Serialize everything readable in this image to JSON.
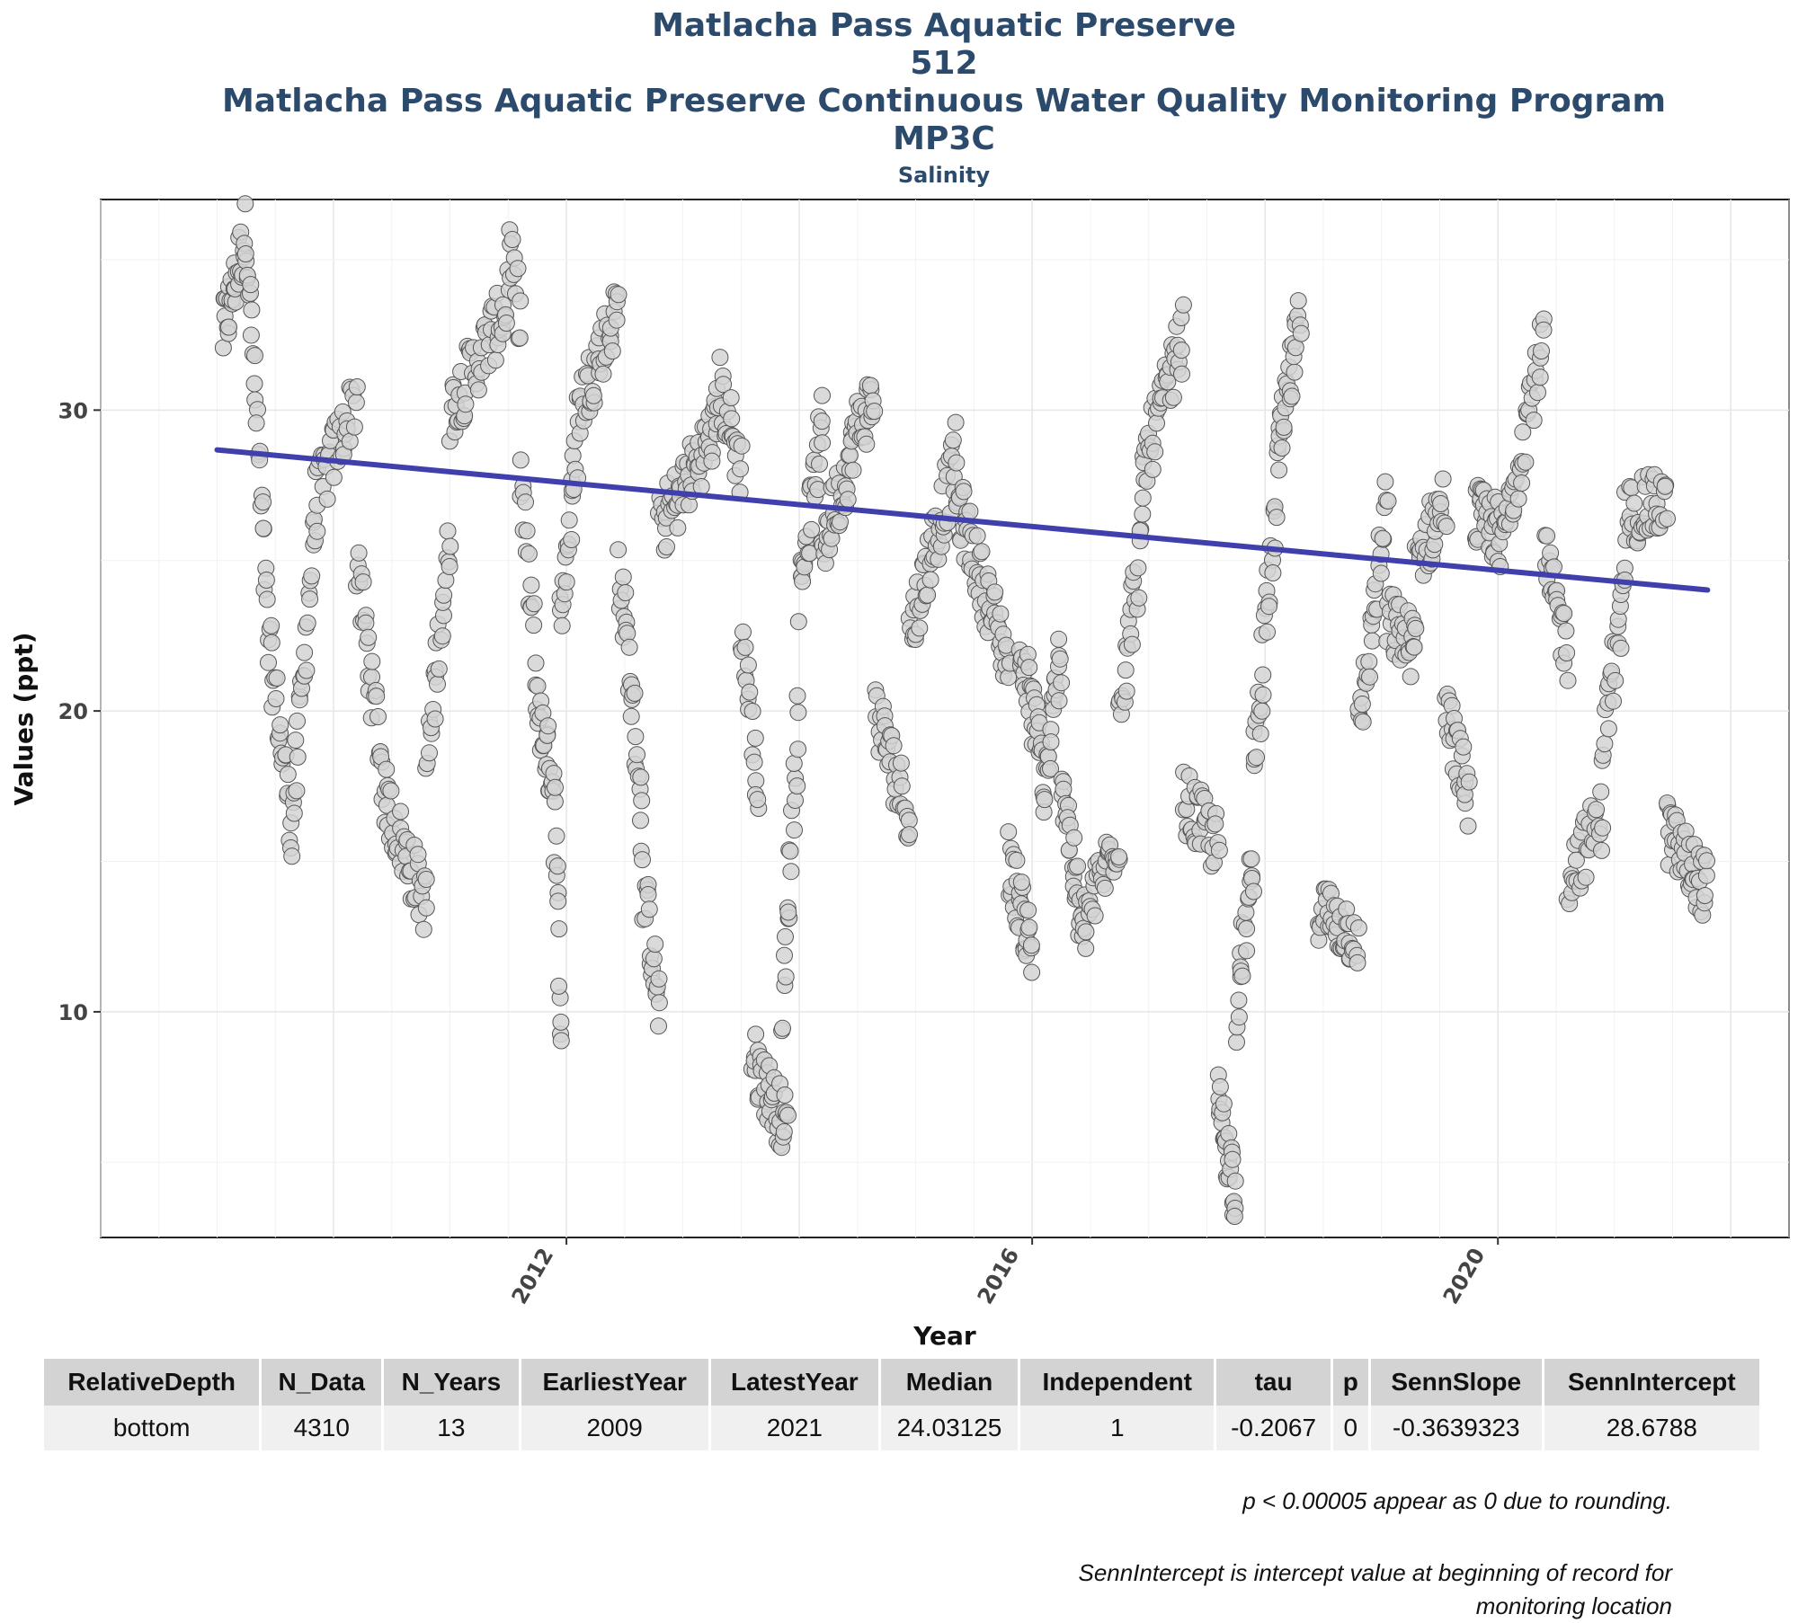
{
  "header": {
    "title": "Matlacha Pass Aquatic Preserve",
    "program_id": "512",
    "program": "Matlacha Pass Aquatic Preserve Continuous Water Quality Monitoring Program",
    "station": "MP3C",
    "parameter": "Salinity"
  },
  "chart_data": {
    "type": "scatter",
    "title": "Matlacha Pass Aquatic Preserve",
    "subtitle": "Salinity",
    "xlabel": "Year",
    "ylabel": "Values (ppt)",
    "xlim": [
      2008.0,
      2022.5
    ],
    "ylim": [
      2.5,
      37.0
    ],
    "x_ticks": [
      2012,
      2016,
      2020
    ],
    "y_ticks": [
      10,
      20,
      30
    ],
    "grid": true,
    "colors": {
      "points_fill": "#d4d4d4",
      "points_stroke": "#555555",
      "trend": "#3f3fae",
      "title": "#2c4a6b"
    },
    "trend": {
      "x": [
        2009.0,
        2021.8
      ],
      "y": [
        28.6788,
        24.02
      ]
    },
    "segments": [
      {
        "x0": 2009.05,
        "x1": 2009.25,
        "y0": 32.5,
        "y1": 36.0,
        "n": 30
      },
      {
        "x0": 2009.25,
        "x1": 2009.45,
        "y0": 36.0,
        "y1": 22.0,
        "n": 28
      },
      {
        "x0": 2009.45,
        "x1": 2009.65,
        "y0": 22.0,
        "y1": 16.0,
        "n": 24
      },
      {
        "x0": 2009.65,
        "x1": 2009.85,
        "y0": 16.5,
        "y1": 27.0,
        "n": 26
      },
      {
        "x0": 2009.85,
        "x1": 2010.2,
        "y0": 27.0,
        "y1": 30.5,
        "n": 34
      },
      {
        "x0": 2010.2,
        "x1": 2010.45,
        "y0": 25.0,
        "y1": 17.0,
        "n": 30
      },
      {
        "x0": 2010.45,
        "x1": 2010.8,
        "y0": 17.0,
        "y1": 13.5,
        "n": 40
      },
      {
        "x0": 2010.8,
        "x1": 2011.0,
        "y0": 18.0,
        "y1": 26.0,
        "n": 26
      },
      {
        "x0": 2011.0,
        "x1": 2011.5,
        "y0": 30.0,
        "y1": 33.5,
        "n": 50
      },
      {
        "x0": 2011.5,
        "x1": 2011.6,
        "y0": 35.5,
        "y1": 33.0,
        "n": 12
      },
      {
        "x0": 2011.6,
        "x1": 2011.75,
        "y0": 28.0,
        "y1": 21.0,
        "n": 18
      },
      {
        "x0": 2011.75,
        "x1": 2011.9,
        "y0": 20.0,
        "y1": 17.5,
        "n": 24
      },
      {
        "x0": 2011.9,
        "x1": 2011.96,
        "y0": 16.0,
        "y1": 9.0,
        "n": 12
      },
      {
        "x0": 2011.95,
        "x1": 2012.1,
        "y0": 23.0,
        "y1": 29.0,
        "n": 22
      },
      {
        "x0": 2012.1,
        "x1": 2012.45,
        "y0": 30.0,
        "y1": 33.5,
        "n": 40
      },
      {
        "x0": 2012.45,
        "x1": 2012.65,
        "y0": 25.0,
        "y1": 17.0,
        "n": 28
      },
      {
        "x0": 2012.65,
        "x1": 2012.8,
        "y0": 14.5,
        "y1": 10.0,
        "n": 22
      },
      {
        "x0": 2012.8,
        "x1": 2013.3,
        "y0": 26.0,
        "y1": 29.5,
        "n": 60
      },
      {
        "x0": 2013.3,
        "x1": 2013.5,
        "y0": 31.0,
        "y1": 28.0,
        "n": 24
      },
      {
        "x0": 2013.5,
        "x1": 2013.65,
        "y0": 23.0,
        "y1": 17.0,
        "n": 18
      },
      {
        "x0": 2013.6,
        "x1": 2013.9,
        "y0": 8.5,
        "y1": 6.0,
        "n": 40
      },
      {
        "x0": 2013.85,
        "x1": 2014.0,
        "y0": 10.0,
        "y1": 20.0,
        "n": 22
      },
      {
        "x0": 2014.0,
        "x1": 2014.2,
        "y0": 24.0,
        "y1": 29.5,
        "n": 28
      },
      {
        "x0": 2014.2,
        "x1": 2014.45,
        "y0": 25.5,
        "y1": 28.5,
        "n": 34
      },
      {
        "x0": 2014.45,
        "x1": 2014.65,
        "y0": 29.0,
        "y1": 30.5,
        "n": 24
      },
      {
        "x0": 2014.65,
        "x1": 2014.95,
        "y0": 20.0,
        "y1": 16.5,
        "n": 34
      },
      {
        "x0": 2014.95,
        "x1": 2015.35,
        "y0": 22.5,
        "y1": 28.5,
        "n": 50
      },
      {
        "x0": 2015.35,
        "x1": 2015.8,
        "y0": 27.0,
        "y1": 21.5,
        "n": 56
      },
      {
        "x0": 2015.8,
        "x1": 2016.0,
        "y0": 15.0,
        "y1": 12.0,
        "n": 30
      },
      {
        "x0": 2015.9,
        "x1": 2016.1,
        "y0": 22.0,
        "y1": 18.0,
        "n": 30
      },
      {
        "x0": 2016.1,
        "x1": 2016.25,
        "y0": 17.0,
        "y1": 22.0,
        "n": 24
      },
      {
        "x0": 2016.25,
        "x1": 2016.45,
        "y0": 18.0,
        "y1": 12.0,
        "n": 30
      },
      {
        "x0": 2016.45,
        "x1": 2016.75,
        "y0": 13.0,
        "y1": 16.0,
        "n": 34
      },
      {
        "x0": 2016.75,
        "x1": 2016.95,
        "y0": 20.0,
        "y1": 26.0,
        "n": 26
      },
      {
        "x0": 2016.95,
        "x1": 2017.3,
        "y0": 28.0,
        "y1": 32.5,
        "n": 42
      },
      {
        "x0": 2017.3,
        "x1": 2017.6,
        "y0": 17.0,
        "y1": 15.5,
        "n": 34
      },
      {
        "x0": 2017.6,
        "x1": 2017.75,
        "y0": 7.0,
        "y1": 4.0,
        "n": 28
      },
      {
        "x0": 2017.75,
        "x1": 2017.9,
        "y0": 10.0,
        "y1": 15.0,
        "n": 22
      },
      {
        "x0": 2017.9,
        "x1": 2018.1,
        "y0": 18.0,
        "y1": 27.0,
        "n": 28
      },
      {
        "x0": 2018.1,
        "x1": 2018.3,
        "y0": 28.0,
        "y1": 33.0,
        "n": 30
      },
      {
        "x0": 2018.45,
        "x1": 2018.8,
        "y0": 13.5,
        "y1": 12.5,
        "n": 40
      },
      {
        "x0": 2018.8,
        "x1": 2019.05,
        "y0": 19.0,
        "y1": 27.0,
        "n": 30
      },
      {
        "x0": 2019.05,
        "x1": 2019.3,
        "y0": 23.0,
        "y1": 22.0,
        "n": 30
      },
      {
        "x0": 2019.3,
        "x1": 2019.55,
        "y0": 25.0,
        "y1": 27.0,
        "n": 30
      },
      {
        "x0": 2019.55,
        "x1": 2019.75,
        "y0": 20.0,
        "y1": 17.0,
        "n": 26
      },
      {
        "x0": 2019.8,
        "x1": 2020.0,
        "y0": 26.5,
        "y1": 26.0,
        "n": 30
      },
      {
        "x0": 2020.0,
        "x1": 2020.4,
        "y0": 25.0,
        "y1": 32.5,
        "n": 44
      },
      {
        "x0": 2020.4,
        "x1": 2020.6,
        "y0": 25.0,
        "y1": 22.0,
        "n": 24
      },
      {
        "x0": 2020.6,
        "x1": 2020.9,
        "y0": 14.5,
        "y1": 16.5,
        "n": 30
      },
      {
        "x0": 2020.9,
        "x1": 2021.1,
        "y0": 19.0,
        "y1": 24.0,
        "n": 24
      },
      {
        "x0": 2021.1,
        "x1": 2021.45,
        "y0": 26.5,
        "y1": 27.0,
        "n": 40
      },
      {
        "x0": 2021.45,
        "x1": 2021.8,
        "y0": 16.0,
        "y1": 14.0,
        "n": 44
      }
    ]
  },
  "table": {
    "columns": [
      "RelativeDepth",
      "N_Data",
      "N_Years",
      "EarliestYear",
      "LatestYear",
      "Median",
      "Independent",
      "tau",
      "p",
      "SennSlope",
      "SennIntercept"
    ],
    "row": [
      "bottom",
      "4310",
      "13",
      "2009",
      "2021",
      "24.03125",
      "1",
      "-0.2067",
      "0",
      "-0.3639323",
      "28.6788"
    ]
  },
  "notes": {
    "rounding": "p < 0.00005 appear as 0 due to rounding.",
    "intercept": "SennIntercept is intercept value at beginning of record for monitoring location"
  }
}
